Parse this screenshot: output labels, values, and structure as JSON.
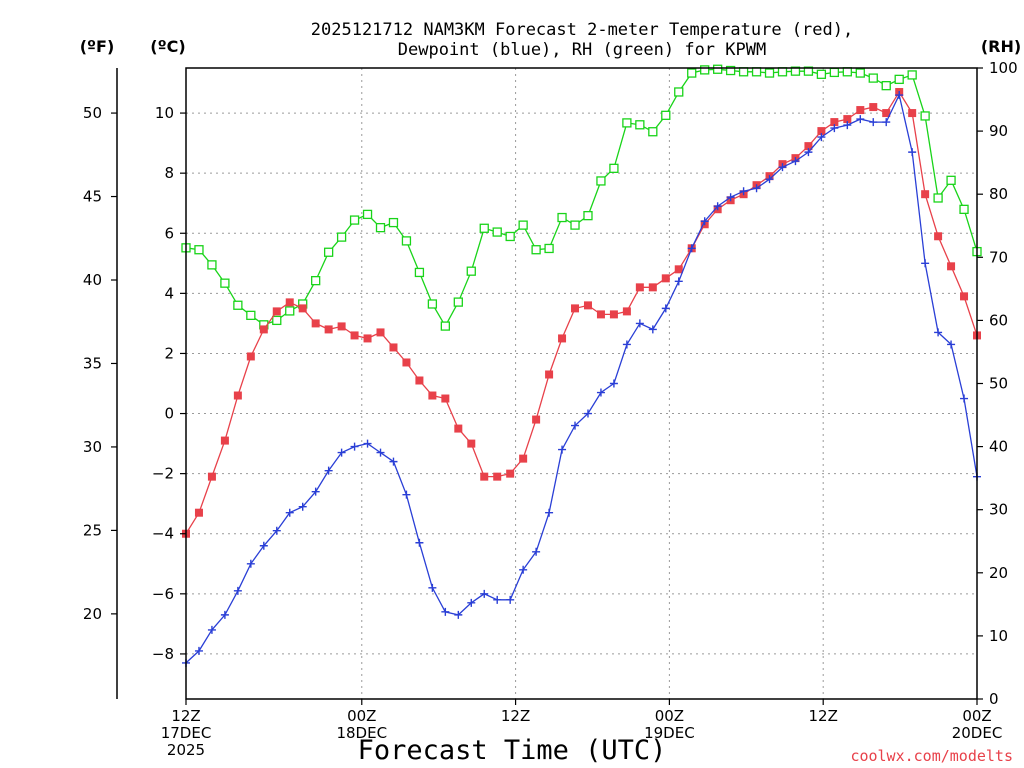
{
  "chart_data": {
    "type": "line",
    "title_lines": [
      "2025121712 NAM3KM Forecast 2-meter Temperature (red),",
      "Dewpoint (blue), RH (green) for KPWM"
    ],
    "xlabel": "Forecast Time (UTC)",
    "credit": "coolwx.com/modelts",
    "unit_left_f": "(ºF)",
    "unit_left_c": "(ºC)",
    "unit_right": "(RH)",
    "x_range_hours": [
      0,
      36
    ],
    "x_ticks": [
      {
        "hour": 0,
        "lines": [
          "12Z",
          "17DEC",
          "2025"
        ]
      },
      {
        "hour": 8,
        "lines": [
          "00Z",
          "18DEC"
        ]
      },
      {
        "hour": 15,
        "lines": [
          "12Z"
        ]
      },
      {
        "hour": 22,
        "lines": [
          "00Z",
          "19DEC"
        ]
      },
      {
        "hour": 29,
        "lines": [
          "12Z"
        ]
      },
      {
        "hour": 36,
        "lines": [
          "00Z",
          "20DEC"
        ]
      }
    ],
    "ylim_c": [
      -9.5,
      11.5
    ],
    "ticks_c": [
      "-8",
      "-6",
      "-4",
      "-2",
      "0",
      "2",
      "4",
      "6",
      "8",
      "10"
    ],
    "ylim_f": [
      14.9,
      52.7
    ],
    "ticks_f": [
      "20",
      "25",
      "30",
      "35",
      "40",
      "45",
      "50"
    ],
    "ylim_rh": [
      0,
      100
    ],
    "ticks_rh": [
      "0",
      "10",
      "20",
      "30",
      "40",
      "50",
      "60",
      "70",
      "80",
      "90",
      "100"
    ],
    "series": [
      {
        "name": "Temperature",
        "units": "C",
        "color": "#e8414a",
        "marker": "filled-square",
        "values": [
          -4.0,
          -3.3,
          -2.1,
          -0.9,
          0.6,
          1.9,
          2.8,
          3.4,
          3.7,
          3.5,
          3.0,
          2.8,
          2.9,
          2.6,
          2.5,
          2.7,
          2.2,
          1.7,
          1.1,
          0.6,
          0.5,
          -0.5,
          -1.0,
          -2.1,
          -2.1,
          -2.0,
          -1.5,
          -0.2,
          1.3,
          2.5,
          3.5,
          3.6,
          3.3,
          3.3,
          3.4,
          4.2,
          4.2,
          4.5,
          4.8,
          5.5,
          6.3,
          6.8,
          7.1,
          7.3,
          7.6,
          7.9,
          8.3,
          8.5,
          8.9,
          9.4,
          9.7,
          9.8,
          10.1,
          10.2,
          10.0,
          10.7,
          10.0,
          7.3,
          5.9,
          4.9,
          3.9,
          2.6
        ]
      },
      {
        "name": "Dewpoint",
        "units": "C",
        "color": "#2a3fd6",
        "marker": "plus",
        "values": [
          -8.3,
          -7.9,
          -7.2,
          -6.7,
          -5.9,
          -5.0,
          -4.4,
          -3.9,
          -3.3,
          -3.1,
          -2.6,
          -1.9,
          -1.3,
          -1.1,
          -1.0,
          -1.3,
          -1.6,
          -2.7,
          -4.3,
          -5.8,
          -6.6,
          -6.7,
          -6.3,
          -6.0,
          -6.2,
          -6.2,
          -5.2,
          -4.6,
          -3.3,
          -1.2,
          -0.4,
          0.0,
          0.7,
          1.0,
          2.3,
          3.0,
          2.8,
          3.5,
          4.4,
          5.5,
          6.4,
          6.9,
          7.2,
          7.4,
          7.5,
          7.8,
          8.2,
          8.4,
          8.7,
          9.2,
          9.5,
          9.6,
          9.8,
          9.7,
          9.7,
          10.6,
          8.7,
          5.0,
          2.7,
          2.3,
          0.5,
          -2.1
        ]
      },
      {
        "name": "RH",
        "units": "%",
        "color": "#19d419",
        "marker": "open-square",
        "values": [
          71.5,
          71.2,
          68.8,
          65.9,
          62.4,
          60.8,
          59.3,
          60.0,
          61.5,
          62.6,
          66.3,
          70.8,
          73.2,
          75.9,
          76.8,
          74.7,
          75.5,
          72.6,
          67.6,
          62.6,
          59.1,
          62.9,
          67.8,
          74.6,
          74.0,
          73.3,
          75.1,
          71.2,
          71.4,
          76.3,
          75.1,
          76.6,
          82.1,
          84.1,
          91.3,
          91.0,
          89.9,
          92.5,
          96.2,
          99.2,
          99.7,
          99.8,
          99.6,
          99.4,
          99.4,
          99.2,
          99.4,
          99.5,
          99.5,
          99.0,
          99.3,
          99.4,
          99.2,
          98.4,
          97.2,
          98.2,
          98.9,
          92.4,
          79.4,
          82.2,
          77.6,
          70.9
        ]
      }
    ]
  }
}
